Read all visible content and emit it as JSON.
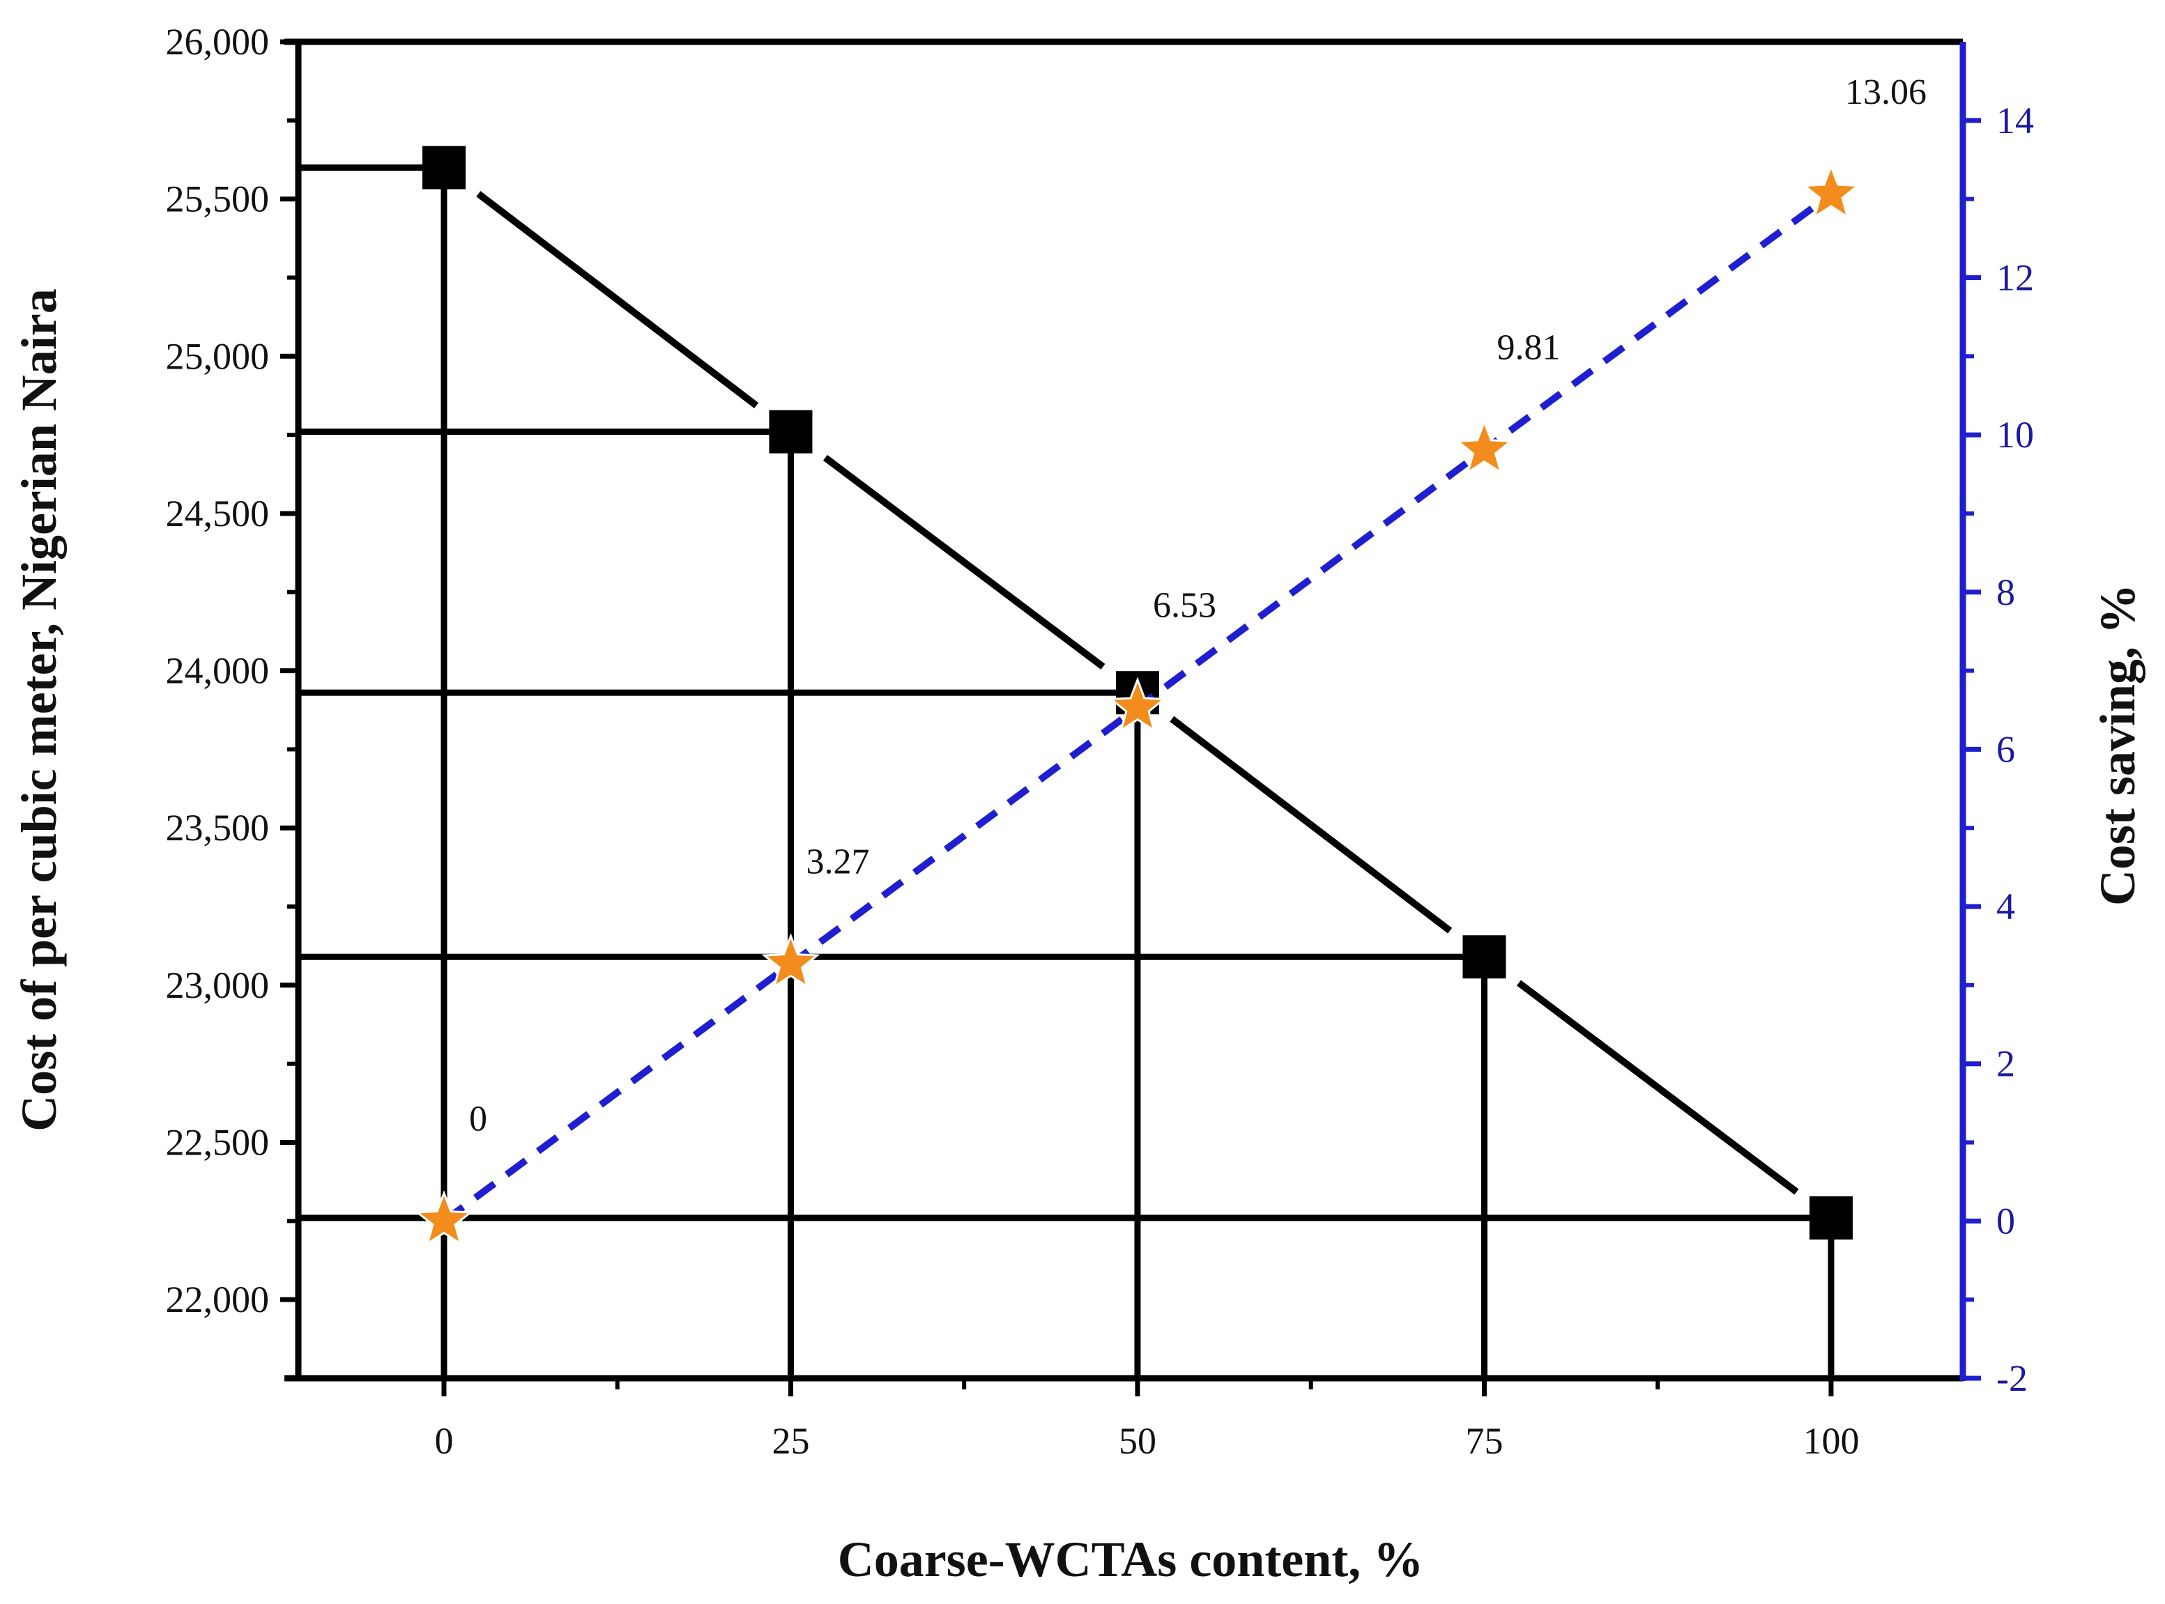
{
  "chart_data": {
    "type": "line",
    "x": [
      0,
      25,
      50,
      75,
      100
    ],
    "x_ticks": [
      0,
      25,
      50,
      75,
      100
    ],
    "xlim": [
      -10.5,
      109.5
    ],
    "xlabel": "Coarse-WCTAs content, %",
    "ylabel_left": "Cost of per cubic meter, Nigerian Naira",
    "ylabel_right": "Cost saving, %",
    "ylim_left": [
      21750,
      26000
    ],
    "ylim_right": [
      -2,
      15
    ],
    "y_ticks_left": [
      22000,
      22500,
      23000,
      23500,
      24000,
      24500,
      25000,
      25500,
      26000
    ],
    "y_tick_labels_left": [
      "22,000",
      "22,500",
      "23,000",
      "23,500",
      "24,000",
      "24,500",
      "25,000",
      "25,500",
      "26,000"
    ],
    "y_ticks_right": [
      -2,
      0,
      2,
      4,
      6,
      8,
      10,
      12,
      14
    ],
    "y_tick_labels_right": [
      "-2",
      "0",
      "2",
      "4",
      "6",
      "8",
      "10",
      "12",
      "14"
    ],
    "grid": false,
    "series": [
      {
        "axis": "left",
        "marker": "square",
        "line_style": "solid",
        "color": "#000000",
        "values": [
          25600,
          24760,
          23930,
          23090,
          22260
        ],
        "drop_lines": true
      },
      {
        "axis": "right",
        "marker": "star",
        "line_style": "dashed",
        "color": "#1f1fd1",
        "marker_color": "#f28c1c",
        "values": [
          0,
          3.27,
          6.53,
          9.81,
          13.06
        ],
        "data_labels": [
          "0",
          "3.27",
          "6.53",
          "9.81",
          "13.06"
        ]
      }
    ],
    "colors": {
      "axis_left": "#000000",
      "axis_right": "#1f1fd1",
      "right_tick_text": "#1a1a9e"
    }
  }
}
